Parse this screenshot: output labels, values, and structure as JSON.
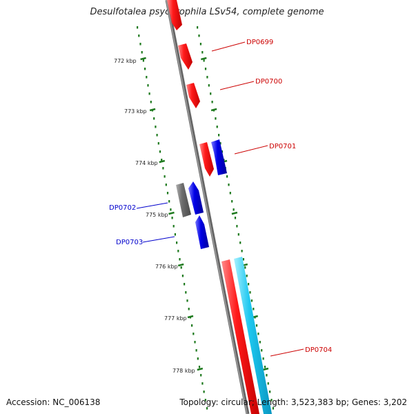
{
  "title": "Desulfotalea psychrophila LSv54, complete genome",
  "footer": {
    "accession": "Accession: NC_006138",
    "summary": "Topology: circular; Length: 3,523,383 bp; Genes: 3,202"
  },
  "colors": {
    "backbone": "#7a7a7a",
    "tick": "#1f7a1f",
    "forward_gene": "#ff0000",
    "reverse_gene": "#0000e6",
    "other_gene": "#6e6e6e",
    "cyan_gene": "#1ec8f0",
    "label_forward": "#cc0000",
    "label_reverse": "#0000cc"
  },
  "ticks": [
    "772 kbp",
    "773 kbp",
    "774 kbp",
    "775 kbp",
    "776 kbp",
    "777 kbp",
    "778 kbp"
  ],
  "genes": [
    "DP0699",
    "DP0700",
    "DP0701",
    "DP0702",
    "DP0703",
    "DP0704"
  ]
}
